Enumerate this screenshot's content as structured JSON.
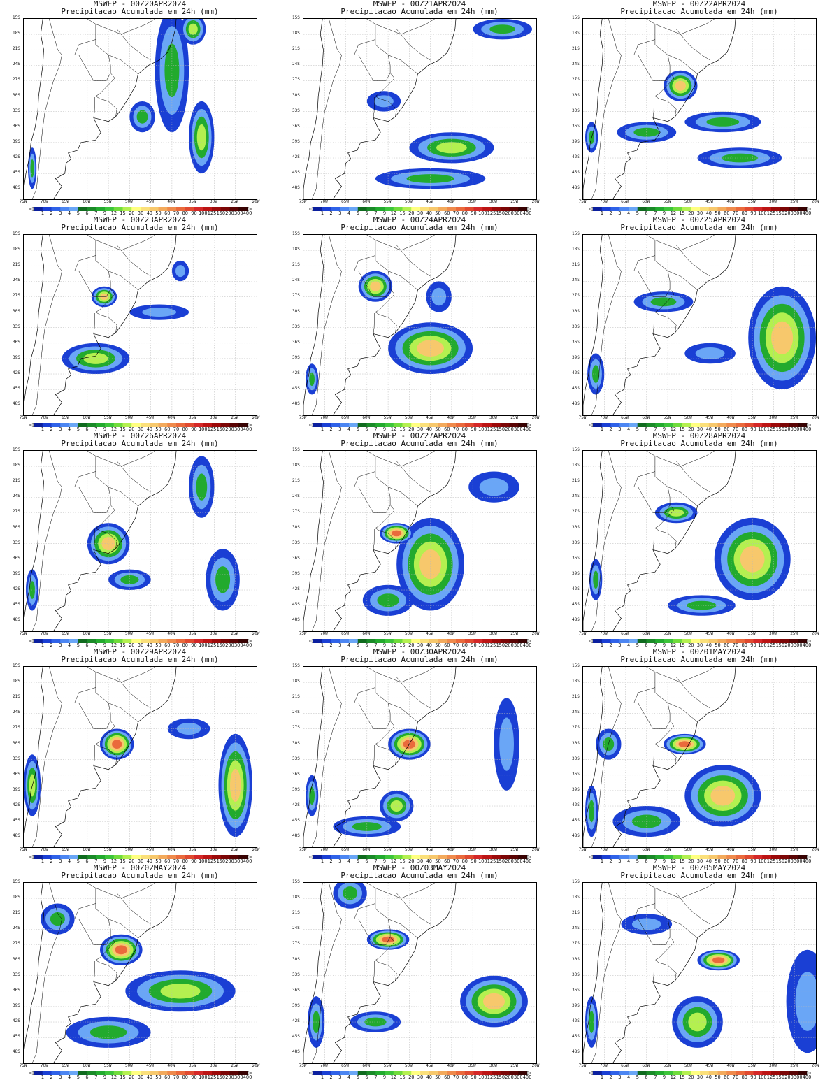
{
  "app": {
    "product": "MSWEP",
    "subtitle": "Precipitacao Acumulada em 24h (mm)"
  },
  "axes": {
    "lat_ticks": [
      "15S",
      "18S",
      "21S",
      "24S",
      "27S",
      "30S",
      "33S",
      "36S",
      "39S",
      "42S",
      "45S",
      "48S"
    ],
    "lon_ticks": [
      "75W",
      "70W",
      "65W",
      "60W",
      "55W",
      "50W",
      "45W",
      "40W",
      "35W",
      "30W",
      "25W",
      "20W"
    ]
  },
  "colorbar": {
    "labels": [
      "1",
      "2",
      "3",
      "4",
      "5",
      "6",
      "7",
      "9",
      "12",
      "15",
      "20",
      "30",
      "40",
      "50",
      "60",
      "70",
      "80",
      "90",
      "100",
      "125",
      "150",
      "200",
      "300",
      "400"
    ],
    "colors": [
      "#0b1f9e",
      "#1a3fd4",
      "#2f62e8",
      "#4c86f2",
      "#6aa6f6",
      "#0f6a1e",
      "#1a8a28",
      "#22aa2e",
      "#3cc43a",
      "#70dc3c",
      "#b4f050",
      "#ffff80",
      "#fbe07a",
      "#f7c86c",
      "#f3aa5c",
      "#ef8a4c",
      "#ea6a3c",
      "#e04a30",
      "#d42828",
      "#bc1414",
      "#9c0a0a",
      "#7c0606",
      "#5a0404",
      "#380202"
    ]
  },
  "panels": [
    {
      "title": "MSWEP - 00Z20APR2024",
      "subtitle": "Precipitacao Acumulada em 24h (mm)",
      "blobs": [
        [
          -40,
          -25,
          4,
          12,
          3
        ],
        [
          -33,
          -38,
          3,
          7,
          4
        ],
        [
          -35,
          -17,
          3,
          3,
          4
        ],
        [
          -47,
          -34,
          3,
          3,
          3
        ],
        [
          -73,
          -44,
          1,
          4,
          3
        ]
      ]
    },
    {
      "title": "MSWEP - 00Z21APR2024",
      "subtitle": "Precipitacao Acumulada em 24h (mm)",
      "blobs": [
        [
          -40,
          -40,
          10,
          3,
          4
        ],
        [
          -28,
          -17,
          7,
          2,
          3
        ],
        [
          -56,
          -31,
          4,
          2,
          2
        ],
        [
          -45,
          -46,
          13,
          2,
          3
        ]
      ]
    },
    {
      "title": "MSWEP - 00Z22APR2024",
      "subtitle": "Precipitacao Acumulada em 24h (mm)",
      "blobs": [
        [
          -52,
          -28,
          4,
          3,
          5
        ],
        [
          -42,
          -35,
          9,
          2,
          3
        ],
        [
          -60,
          -37,
          7,
          2,
          3
        ],
        [
          -73,
          -38,
          1.5,
          3,
          3
        ],
        [
          -38,
          -42,
          10,
          2,
          3
        ]
      ]
    },
    {
      "title": "MSWEP - 00Z23APR2024",
      "subtitle": "Precipitacao Acumulada em 24h (mm)",
      "blobs": [
        [
          -56,
          -27,
          3,
          2,
          5
        ],
        [
          -58,
          -39,
          8,
          3,
          4
        ],
        [
          -43,
          -30,
          7,
          1.5,
          2
        ],
        [
          -38,
          -22,
          2,
          2,
          2
        ]
      ]
    },
    {
      "title": "MSWEP - 00Z24APR2024",
      "subtitle": "Precipitacao Acumulada em 24h (mm)",
      "blobs": [
        [
          -58,
          -25,
          4,
          3,
          5
        ],
        [
          -45,
          -37,
          10,
          5,
          5
        ],
        [
          -73,
          -43,
          1.5,
          3,
          3
        ],
        [
          -43,
          -27,
          3,
          3,
          2
        ]
      ]
    },
    {
      "title": "MSWEP - 00Z25APR2024",
      "subtitle": "Precipitacao Acumulada em 24h (mm)",
      "blobs": [
        [
          -28,
          -35,
          8,
          10,
          5
        ],
        [
          -56,
          -28,
          7,
          2,
          3
        ],
        [
          -72,
          -42,
          2,
          4,
          3
        ],
        [
          -45,
          -38,
          6,
          2,
          2
        ]
      ]
    },
    {
      "title": "MSWEP - 00Z26APR2024",
      "subtitle": "Precipitacao Acumulada em 24h (mm)",
      "blobs": [
        [
          -55,
          -33,
          5,
          4,
          5
        ],
        [
          -50,
          -40,
          5,
          2,
          3
        ],
        [
          -33,
          -22,
          3,
          6,
          3
        ],
        [
          -28,
          -40,
          4,
          6,
          3
        ],
        [
          -73,
          -42,
          1.5,
          4,
          3
        ]
      ]
    },
    {
      "title": "MSWEP - 00Z27APR2024",
      "subtitle": "Precipitacao Acumulada em 24h (mm)",
      "blobs": [
        [
          -45,
          -37,
          8,
          9,
          5
        ],
        [
          -53,
          -31,
          4,
          2,
          6
        ],
        [
          -55,
          -44,
          6,
          3,
          3
        ],
        [
          -30,
          -22,
          6,
          3,
          2
        ]
      ]
    },
    {
      "title": "MSWEP - 00Z28APR2024",
      "subtitle": "Precipitacao Acumulada em 24h (mm)",
      "blobs": [
        [
          -35,
          -36,
          9,
          8,
          5
        ],
        [
          -53,
          -27,
          5,
          2,
          4
        ],
        [
          -47,
          -45,
          8,
          2,
          3
        ],
        [
          -72,
          -40,
          1.5,
          4,
          3
        ]
      ]
    },
    {
      "title": "MSWEP - 00Z29APR2024",
      "subtitle": "Precipitacao Acumulada em 24h (mm)",
      "blobs": [
        [
          -53,
          -30,
          4,
          3,
          6
        ],
        [
          -25,
          -38,
          4,
          10,
          5
        ],
        [
          -73,
          -38,
          2,
          6,
          4
        ],
        [
          -36,
          -27,
          5,
          2,
          2
        ]
      ]
    },
    {
      "title": "MSWEP - 00Z30APR2024",
      "subtitle": "Precipitacao Acumulada em 24h (mm)",
      "blobs": [
        [
          -50,
          -30,
          5,
          3,
          6
        ],
        [
          -53,
          -42,
          4,
          3,
          4
        ],
        [
          -60,
          -46,
          8,
          2,
          3
        ],
        [
          -27,
          -30,
          3,
          9,
          2
        ],
        [
          -73,
          -40,
          1.5,
          4,
          3
        ]
      ]
    },
    {
      "title": "MSWEP - 00Z01MAY2024",
      "subtitle": "Precipitacao Acumulada em 24h (mm)",
      "blobs": [
        [
          -51,
          -30,
          5,
          2,
          6
        ],
        [
          -42,
          -40,
          9,
          6,
          5
        ],
        [
          -60,
          -45,
          8,
          3,
          3
        ],
        [
          -69,
          -30,
          3,
          3,
          3
        ],
        [
          -73,
          -43,
          1.5,
          5,
          3
        ]
      ]
    },
    {
      "title": "MSWEP - 00Z02MAY2024",
      "subtitle": "Precipitacao Acumulada em 24h (mm)",
      "blobs": [
        [
          -52,
          -28,
          5,
          3,
          6
        ],
        [
          -38,
          -36,
          13,
          4,
          4
        ],
        [
          -55,
          -44,
          10,
          3,
          3
        ],
        [
          -67,
          -22,
          4,
          3,
          3
        ]
      ]
    },
    {
      "title": "MSWEP - 00Z03MAY2024",
      "subtitle": "Precipitacao Acumulada em 24h (mm)",
      "blobs": [
        [
          -55,
          -26,
          5,
          2,
          6
        ],
        [
          -30,
          -38,
          8,
          5,
          5
        ],
        [
          -58,
          -42,
          6,
          2,
          3
        ],
        [
          -64,
          -17,
          4,
          3,
          3
        ],
        [
          -72,
          -42,
          2,
          5,
          3
        ]
      ]
    },
    {
      "title": "MSWEP - 00Z05MAY2024",
      "subtitle": "Precipitacao Acumulada em 24h (mm)",
      "blobs": [
        [
          -43,
          -30,
          5,
          2,
          6
        ],
        [
          -48,
          -42,
          6,
          5,
          4
        ],
        [
          -22,
          -38,
          5,
          10,
          2
        ],
        [
          -60,
          -23,
          6,
          2,
          2
        ],
        [
          -73,
          -42,
          1.5,
          5,
          3
        ]
      ]
    }
  ]
}
